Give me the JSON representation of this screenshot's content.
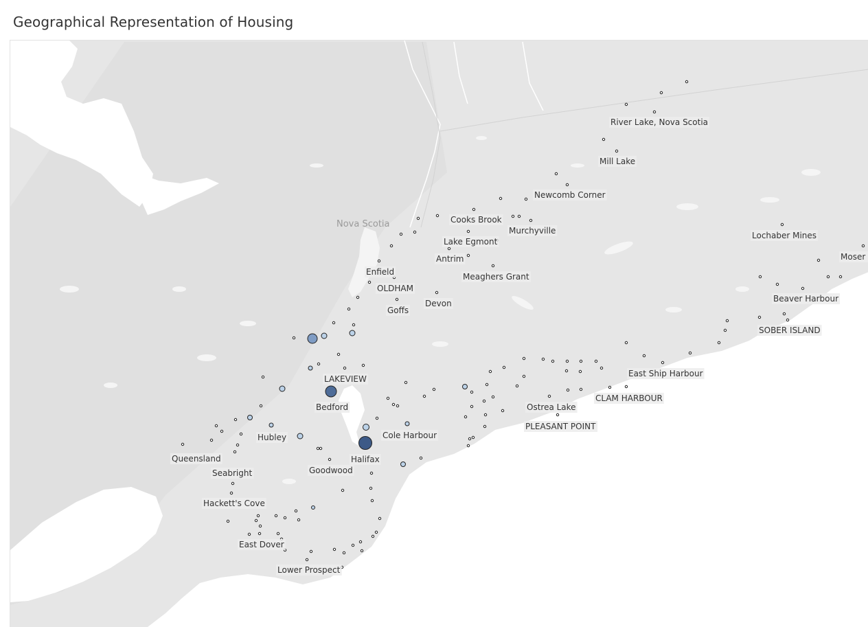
{
  "title": "Geographical Representation of Housing",
  "map": {
    "region_label": "Nova Scotia",
    "colors": {
      "land": "#e6e6e6",
      "water": "#ffffff",
      "marker_light": "#bcd2e8",
      "marker_mid": "#7f9cc4",
      "marker_dark": "#3d5a87",
      "stroke": "#222222"
    },
    "labels": [
      "River Lake, Nova Scotia",
      "Mill Lake",
      "Newcomb Corner",
      "Cooks Brook",
      "Murchyville",
      "Lake Egmont",
      "Antrim",
      "Meaghers Grant",
      "Enfield",
      "OLDHAM",
      "Devon",
      "Goffs",
      "Lochaber Mines",
      "Moser R",
      "Beaver Harbour",
      "SOBER ISLAND",
      "East Ship Harbour",
      "CLAM HARBOUR",
      "Ostrea Lake",
      "PLEASANT POINT",
      "LAKEVIEW",
      "Bedford",
      "Cole Harbour",
      "Hubley",
      "Queensland",
      "Halifax",
      "Goodwood",
      "Seabright",
      "Hackett's Cove",
      "East Dover",
      "Lower Prospect"
    ]
  }
}
